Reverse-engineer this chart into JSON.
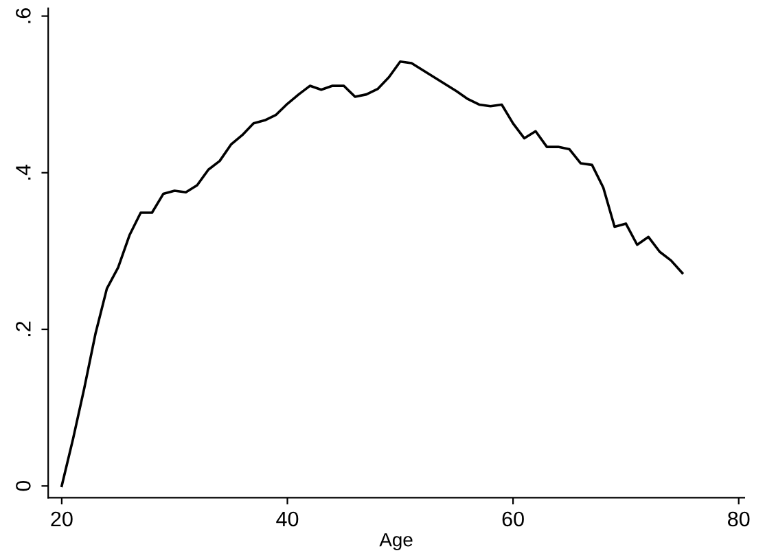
{
  "chart_data": {
    "type": "line",
    "xlabel": "Age",
    "x": [
      20,
      21,
      22,
      23,
      24,
      25,
      26,
      27,
      28,
      29,
      30,
      31,
      32,
      33,
      34,
      35,
      36,
      37,
      38,
      39,
      40,
      41,
      42,
      43,
      44,
      45,
      46,
      47,
      48,
      49,
      50,
      51,
      52,
      53,
      54,
      55,
      56,
      57,
      58,
      59,
      60,
      61,
      62,
      63,
      64,
      65,
      66,
      67,
      68,
      69,
      70,
      71,
      72,
      73,
      74,
      75
    ],
    "series": [
      {
        "color": "#000000",
        "values": [
          0,
          0.06,
          0.125,
          0.195,
          0.252,
          0.279,
          0.32,
          0.349,
          0.349,
          0.373,
          0.377,
          0.375,
          0.384,
          0.404,
          0.415,
          0.436,
          0.448,
          0.463,
          0.467,
          0.474,
          0.488,
          0.5,
          0.511,
          0.506,
          0.511,
          0.511,
          0.497,
          0.5,
          0.507,
          0.522,
          0.542,
          0.54,
          0.531,
          0.522,
          0.513,
          0.504,
          0.494,
          0.487,
          0.485,
          0.487,
          0.463,
          0.444,
          0.453,
          0.433,
          0.433,
          0.43,
          0.412,
          0.41,
          0.381,
          0.331,
          0.335,
          0.308,
          0.318,
          0.299,
          0.288,
          0.272
        ]
      }
    ],
    "xlim": [
      18.8,
      80.5
    ],
    "xticks": [
      20,
      40,
      60,
      80
    ],
    "ylim": [
      -0.015,
      0.61
    ],
    "yticks": [
      {
        "value": 0,
        "label": "0"
      },
      {
        "value": 0.2,
        "label": ".2"
      },
      {
        "value": 0.4,
        "label": ".4"
      },
      {
        "value": 0.6,
        "label": ".6"
      }
    ],
    "grid": false
  }
}
